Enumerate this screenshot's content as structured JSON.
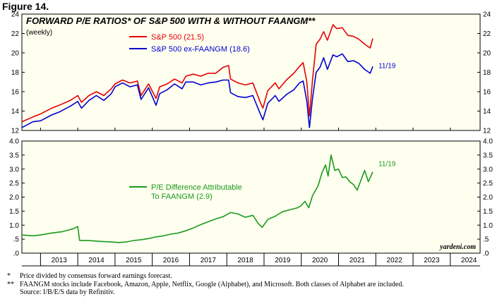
{
  "figure_label": "Figure 14.",
  "footnotes": [
    {
      "mark": "*",
      "text": "Price divided by consensus forward earnings forecast."
    },
    {
      "mark": "**",
      "text": "FAANGM stocks include Facebook, Amazon, Apple, Netflix, Google (Alphabet), and Microsoft. Both classes of Alphabet are included."
    },
    {
      "mark": "",
      "text": "Source: I/B/E/S data by Refinitiv."
    }
  ],
  "colors": {
    "panel_bg": "#fffff0",
    "sp500": "#e30000",
    "ex_faangm": "#0000d0",
    "difference": "#1a9a1a",
    "axis": "#000000"
  },
  "chart_data": [
    {
      "type": "line",
      "title": "FORWARD P/E RATIOS* OF S&P 500 WITH & WITHOUT FAANGM**",
      "subtitle": "(weekly)",
      "ylim": [
        12,
        24
      ],
      "yticks": [
        "12",
        "14",
        "16",
        "18",
        "20",
        "22",
        "24"
      ],
      "legend_position": "top-left",
      "end_annotation": "11/19",
      "series": [
        {
          "name": "S&P 500 (21.5)",
          "color": "#e30000",
          "points": [
            [
              2012.5,
              12.9
            ],
            [
              2012.8,
              13.4
            ],
            [
              2013.0,
              13.7
            ],
            [
              2013.3,
              14.3
            ],
            [
              2013.5,
              14.6
            ],
            [
              2013.8,
              15.1
            ],
            [
              2014.0,
              15.6
            ],
            [
              2014.1,
              14.9
            ],
            [
              2014.3,
              15.6
            ],
            [
              2014.5,
              16.0
            ],
            [
              2014.7,
              15.6
            ],
            [
              2014.9,
              16.3
            ],
            [
              2015.0,
              16.8
            ],
            [
              2015.2,
              17.2
            ],
            [
              2015.4,
              16.9
            ],
            [
              2015.6,
              17.1
            ],
            [
              2015.7,
              15.6
            ],
            [
              2015.9,
              16.8
            ],
            [
              2016.1,
              15.3
            ],
            [
              2016.2,
              16.5
            ],
            [
              2016.4,
              16.8
            ],
            [
              2016.6,
              17.3
            ],
            [
              2016.8,
              16.9
            ],
            [
              2016.9,
              17.6
            ],
            [
              2017.1,
              17.8
            ],
            [
              2017.3,
              17.6
            ],
            [
              2017.5,
              17.9
            ],
            [
              2017.7,
              17.9
            ],
            [
              2017.9,
              18.5
            ],
            [
              2018.05,
              18.7
            ],
            [
              2018.1,
              17.3
            ],
            [
              2018.3,
              16.9
            ],
            [
              2018.5,
              16.7
            ],
            [
              2018.7,
              16.9
            ],
            [
              2018.9,
              14.9
            ],
            [
              2018.97,
              14.3
            ],
            [
              2019.1,
              16.1
            ],
            [
              2019.3,
              16.9
            ],
            [
              2019.4,
              16.3
            ],
            [
              2019.6,
              17.2
            ],
            [
              2019.8,
              17.9
            ],
            [
              2019.95,
              18.6
            ],
            [
              2020.05,
              19.0
            ],
            [
              2020.15,
              17.0
            ],
            [
              2020.22,
              13.5
            ],
            [
              2020.3,
              17.2
            ],
            [
              2020.4,
              20.9
            ],
            [
              2020.5,
              21.4
            ],
            [
              2020.6,
              22.2
            ],
            [
              2020.7,
              21.3
            ],
            [
              2020.85,
              22.9
            ],
            [
              2020.95,
              22.5
            ],
            [
              2021.1,
              22.6
            ],
            [
              2021.25,
              21.8
            ],
            [
              2021.4,
              21.7
            ],
            [
              2021.55,
              21.4
            ],
            [
              2021.7,
              20.9
            ],
            [
              2021.85,
              20.5
            ],
            [
              2021.92,
              21.5
            ]
          ]
        },
        {
          "name": "S&P 500 ex-FAANGM (18.6)",
          "color": "#0000d0",
          "points": [
            [
              2012.5,
              12.3
            ],
            [
              2012.8,
              12.9
            ],
            [
              2013.0,
              13.0
            ],
            [
              2013.3,
              13.6
            ],
            [
              2013.5,
              13.9
            ],
            [
              2013.8,
              14.5
            ],
            [
              2014.0,
              15.0
            ],
            [
              2014.1,
              14.3
            ],
            [
              2014.3,
              15.1
            ],
            [
              2014.5,
              15.6
            ],
            [
              2014.7,
              15.1
            ],
            [
              2014.9,
              15.8
            ],
            [
              2015.0,
              16.5
            ],
            [
              2015.2,
              16.9
            ],
            [
              2015.4,
              16.5
            ],
            [
              2015.6,
              16.7
            ],
            [
              2015.7,
              15.2
            ],
            [
              2015.9,
              16.4
            ],
            [
              2016.1,
              14.6
            ],
            [
              2016.2,
              15.8
            ],
            [
              2016.4,
              16.2
            ],
            [
              2016.6,
              16.8
            ],
            [
              2016.8,
              16.3
            ],
            [
              2016.9,
              17.0
            ],
            [
              2017.1,
              17.0
            ],
            [
              2017.3,
              16.7
            ],
            [
              2017.5,
              16.9
            ],
            [
              2017.7,
              17.0
            ],
            [
              2017.9,
              17.2
            ],
            [
              2018.05,
              17.2
            ],
            [
              2018.1,
              15.9
            ],
            [
              2018.3,
              15.5
            ],
            [
              2018.5,
              15.4
            ],
            [
              2018.7,
              15.6
            ],
            [
              2018.9,
              13.7
            ],
            [
              2018.97,
              13.1
            ],
            [
              2019.1,
              14.8
            ],
            [
              2019.3,
              15.6
            ],
            [
              2019.4,
              15.0
            ],
            [
              2019.6,
              15.7
            ],
            [
              2019.8,
              16.2
            ],
            [
              2019.95,
              16.9
            ],
            [
              2020.05,
              17.1
            ],
            [
              2020.15,
              15.0
            ],
            [
              2020.22,
              12.3
            ],
            [
              2020.3,
              15.3
            ],
            [
              2020.4,
              18.0
            ],
            [
              2020.5,
              18.5
            ],
            [
              2020.6,
              19.5
            ],
            [
              2020.7,
              18.3
            ],
            [
              2020.85,
              19.8
            ],
            [
              2020.95,
              19.6
            ],
            [
              2021.1,
              19.9
            ],
            [
              2021.25,
              19.1
            ],
            [
              2021.4,
              19.2
            ],
            [
              2021.55,
              18.9
            ],
            [
              2021.7,
              18.3
            ],
            [
              2021.85,
              17.9
            ],
            [
              2021.92,
              18.6
            ]
          ]
        }
      ]
    },
    {
      "type": "line",
      "ylim": [
        0,
        4
      ],
      "yticks": [
        ".0",
        ".5",
        "1.0",
        "1.5",
        "2.0",
        "2.5",
        "3.0",
        "3.5",
        "4.0"
      ],
      "xlim": [
        2012.5,
        2024.8
      ],
      "xticks": [
        "2013",
        "2014",
        "2015",
        "2016",
        "2017",
        "2018",
        "2019",
        "2020",
        "2021",
        "2022",
        "2023",
        "2024"
      ],
      "legend_position": "center",
      "end_annotation": "11/19",
      "credit": "yardeni.com",
      "series": [
        {
          "name": "P/E Difference Attributable To FAANGM (2.9)",
          "color": "#1a9a1a",
          "points": [
            [
              2012.5,
              0.65
            ],
            [
              2012.8,
              0.62
            ],
            [
              2013.0,
              0.65
            ],
            [
              2013.3,
              0.72
            ],
            [
              2013.6,
              0.77
            ],
            [
              2013.9,
              0.88
            ],
            [
              2014.0,
              0.95
            ],
            [
              2014.05,
              0.45
            ],
            [
              2014.3,
              0.45
            ],
            [
              2014.6,
              0.42
            ],
            [
              2014.9,
              0.4
            ],
            [
              2015.1,
              0.38
            ],
            [
              2015.3,
              0.4
            ],
            [
              2015.5,
              0.45
            ],
            [
              2015.7,
              0.48
            ],
            [
              2015.9,
              0.52
            ],
            [
              2016.1,
              0.58
            ],
            [
              2016.3,
              0.62
            ],
            [
              2016.5,
              0.68
            ],
            [
              2016.7,
              0.72
            ],
            [
              2016.9,
              0.8
            ],
            [
              2017.1,
              0.9
            ],
            [
              2017.3,
              1.02
            ],
            [
              2017.5,
              1.12
            ],
            [
              2017.7,
              1.22
            ],
            [
              2017.9,
              1.3
            ],
            [
              2018.1,
              1.45
            ],
            [
              2018.3,
              1.4
            ],
            [
              2018.5,
              1.28
            ],
            [
              2018.7,
              1.35
            ],
            [
              2018.85,
              1.05
            ],
            [
              2018.95,
              0.92
            ],
            [
              2019.1,
              1.2
            ],
            [
              2019.3,
              1.32
            ],
            [
              2019.5,
              1.48
            ],
            [
              2019.7,
              1.55
            ],
            [
              2019.9,
              1.62
            ],
            [
              2020.0,
              1.7
            ],
            [
              2020.1,
              1.85
            ],
            [
              2020.2,
              1.62
            ],
            [
              2020.3,
              2.05
            ],
            [
              2020.45,
              2.4
            ],
            [
              2020.55,
              2.85
            ],
            [
              2020.65,
              3.15
            ],
            [
              2020.72,
              2.75
            ],
            [
              2020.8,
              3.5
            ],
            [
              2020.9,
              2.95
            ],
            [
              2021.0,
              3.0
            ],
            [
              2021.1,
              2.7
            ],
            [
              2021.2,
              2.72
            ],
            [
              2021.3,
              2.55
            ],
            [
              2021.4,
              2.45
            ],
            [
              2021.5,
              2.25
            ],
            [
              2021.6,
              2.6
            ],
            [
              2021.7,
              2.95
            ],
            [
              2021.8,
              2.55
            ],
            [
              2021.92,
              2.9
            ]
          ]
        }
      ]
    }
  ]
}
